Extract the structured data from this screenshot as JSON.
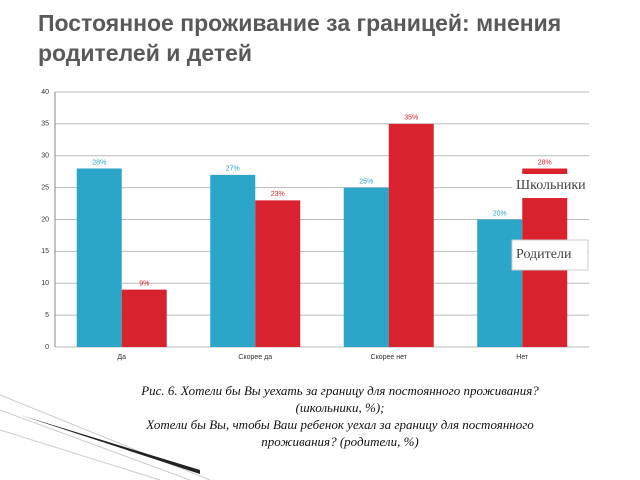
{
  "title": "Постоянное проживание за границей: мнения родителей и детей",
  "chart_data": {
    "type": "bar",
    "categories": [
      "Да",
      "Скорее да",
      "Скорее нет",
      "Нет"
    ],
    "series": [
      {
        "name": "Родители",
        "color": "#2ba6c8",
        "values": [
          28,
          27,
          25,
          20
        ],
        "value_labels": [
          "28%",
          "27%",
          "25%",
          "20%"
        ]
      },
      {
        "name": "Школьники",
        "color": "#d8232f",
        "values": [
          9,
          23,
          35,
          28
        ],
        "value_labels": [
          "9%",
          "23%",
          "35%",
          "28%"
        ]
      }
    ],
    "ylim": [
      0,
      40
    ],
    "yticks": [
      0,
      5,
      10,
      15,
      20,
      25,
      30,
      35,
      40
    ],
    "grid": true
  },
  "caption": [
    "Рис. 6. Хотели бы Вы уехать за границу для постоянного проживания?",
    "(школьники, %);",
    "Хотели бы Вы, чтобы Ваш ребенок уехал за границу для постоянного",
    "проживания? (родители, %)"
  ]
}
